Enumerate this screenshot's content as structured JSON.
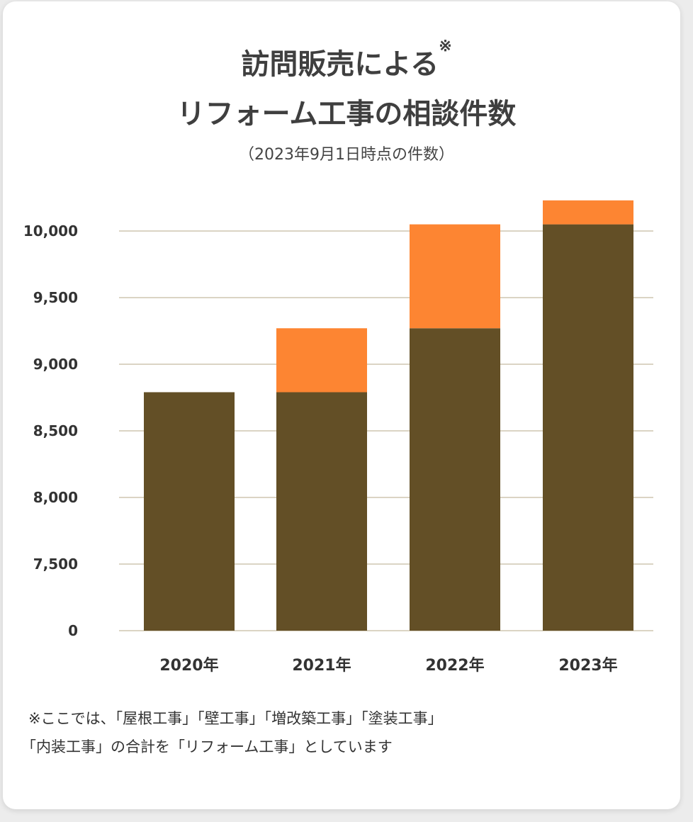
{
  "title_line1": "訪問販売による",
  "title_mark": "※",
  "title_line2": "リフォーム工事の相談件数",
  "subtitle": "（2023年9月1日時点の件数）",
  "note_line1": "※ここでは、「屋根工事」「壁工事」「増改築工事」「塗装工事」",
  "note_line2": "「内装工事」の合計を「リフォーム工事」としています",
  "chart_data": {
    "type": "bar",
    "stacked": true,
    "categories": [
      "2020年",
      "2021年",
      "2022年",
      "2023年"
    ],
    "series": [
      {
        "values": [
          8790,
          8790,
          9270,
          10050
        ],
        "color": "#634f26"
      },
      {
        "values": [
          0,
          480,
          780,
          180
        ],
        "color": "#fd8532"
      }
    ],
    "totals": [
      8790,
      9270,
      10050,
      10230
    ],
    "y_ticks": [
      "0",
      "7,500",
      "8,000",
      "8,500",
      "9,000",
      "9,500",
      "10,000"
    ],
    "y_tick_values": [
      0,
      7500,
      8000,
      8500,
      9000,
      9500,
      10000
    ],
    "axis_break": [
      0,
      7500
    ],
    "ylim": [
      0,
      10250
    ],
    "grid": true,
    "grid_color": "#cfc6b0"
  }
}
